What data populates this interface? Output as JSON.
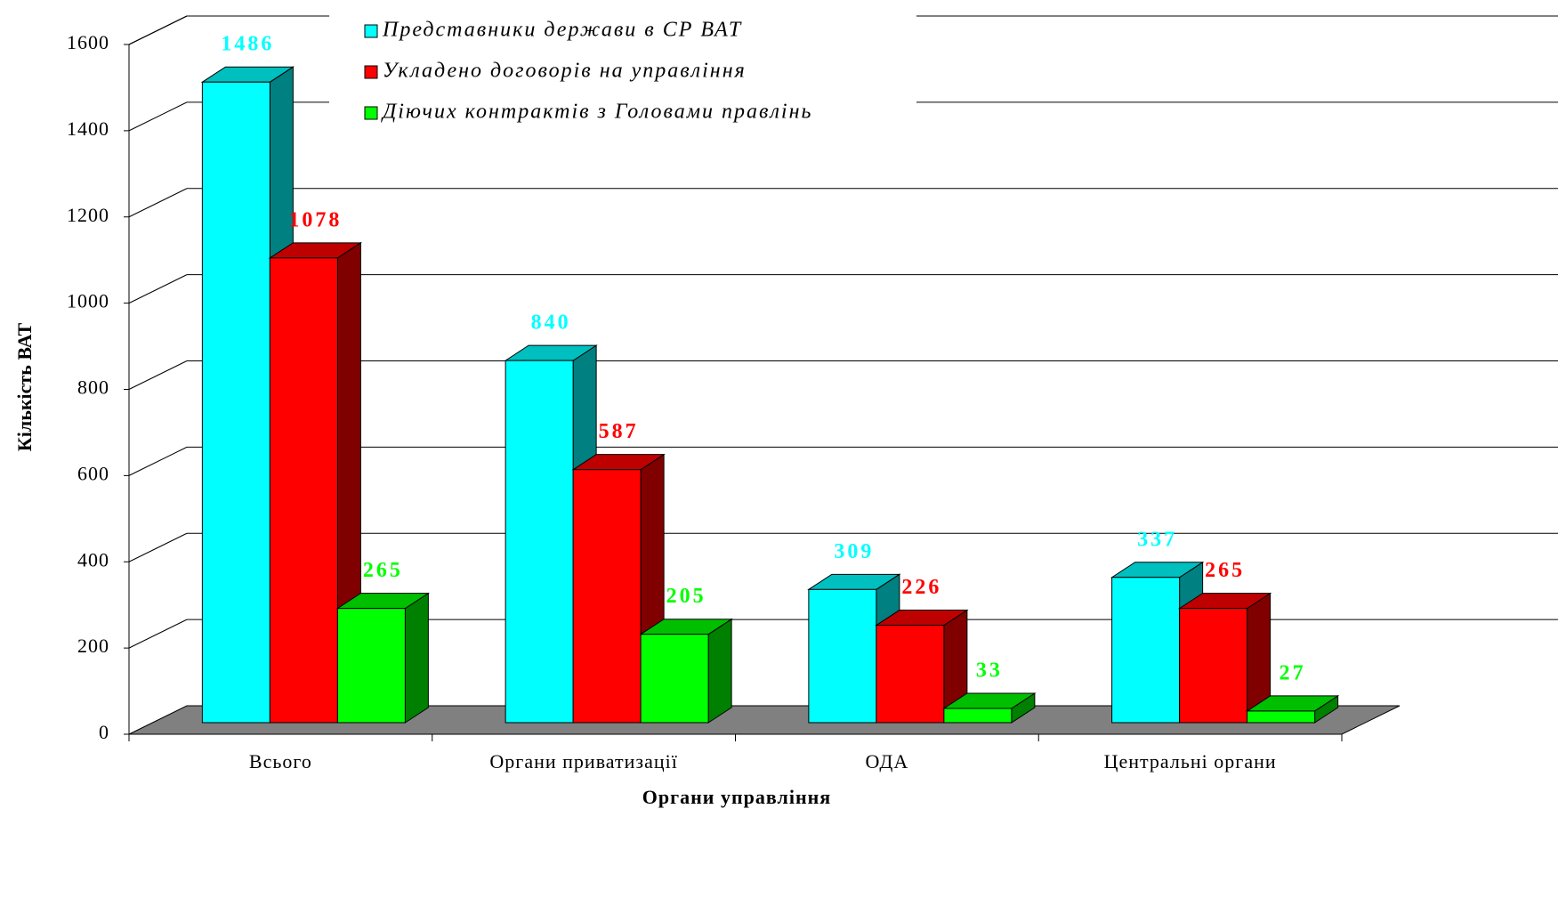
{
  "chart_data": {
    "type": "bar3d",
    "y_label": "Кількість ВАТ",
    "x_label": "Органи управління",
    "categories": [
      "Всього",
      "Органи приватизації",
      "ОДА",
      "Центральні органи"
    ],
    "series": [
      {
        "name": "Представники держави в СР ВАТ",
        "color": "#00ffff",
        "values": [
          1486,
          840,
          309,
          337
        ]
      },
      {
        "name": "Укладено договорів на управління",
        "color": "#ff0000",
        "values": [
          1078,
          587,
          226,
          265
        ]
      },
      {
        "name": "Діючих контрактів з Головами правлінь",
        "color": "#00ff00",
        "values": [
          265,
          205,
          33,
          27
        ]
      }
    ],
    "ylim": [
      0,
      1600
    ],
    "yticks": [
      0,
      200,
      400,
      600,
      800,
      1000,
      1200,
      1400,
      1600
    ],
    "grid": true
  }
}
